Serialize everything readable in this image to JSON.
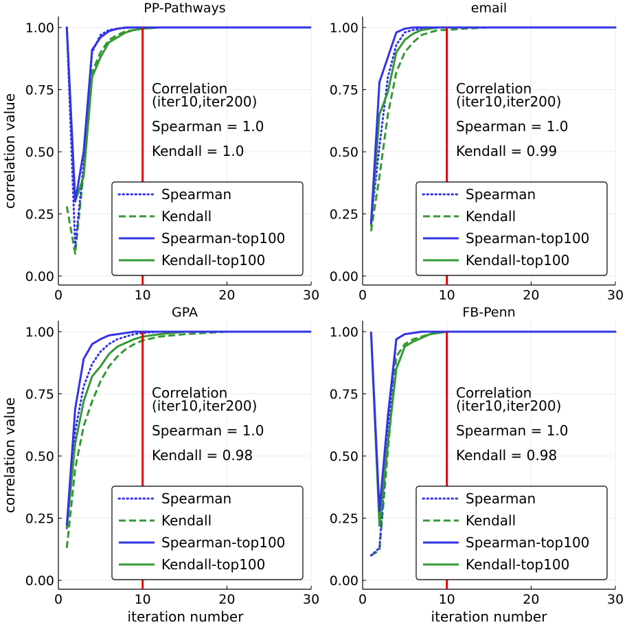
{
  "figure": {
    "ylabel": "correlation value",
    "xlabel": "iteration number"
  },
  "colors": {
    "spearman": "#3333e6",
    "kendall": "#339933",
    "vline": "#e60000",
    "grid": "#ebebeb"
  },
  "chart_data": [
    {
      "type": "line",
      "title": "PP-Pathways",
      "xlim": [
        0,
        30
      ],
      "ylim": [
        0,
        1
      ],
      "xticks": [
        "0",
        "10",
        "20",
        "30"
      ],
      "yticks": [
        "0.00",
        "0.25",
        "0.50",
        "0.75",
        "1.00"
      ],
      "vline": 10,
      "annotation": {
        "line1": "Correlation",
        "line2": "(iter10,iter200)",
        "spearman": "Spearman = 1.0",
        "kendall": "Kendall = 1.0"
      },
      "series": [
        {
          "name": "Spearman",
          "style": "dotted",
          "x": [
            1,
            2,
            3,
            4,
            5,
            6,
            7,
            8,
            9,
            10,
            12,
            15,
            20,
            30
          ],
          "values": [
            1.0,
            0.12,
            0.45,
            0.9,
            0.97,
            0.99,
            0.995,
            0.998,
            1.0,
            1.0,
            1.0,
            1.0,
            1.0,
            1.0
          ]
        },
        {
          "name": "Kendall",
          "style": "dashed",
          "x": [
            1,
            2,
            3,
            4,
            5,
            6,
            7,
            8,
            9,
            10,
            12,
            15,
            20,
            30
          ],
          "values": [
            0.28,
            0.09,
            0.42,
            0.82,
            0.9,
            0.95,
            0.97,
            0.985,
            0.99,
            0.995,
            1.0,
            1.0,
            1.0,
            1.0
          ]
        },
        {
          "name": "Spearman-top100",
          "style": "solid",
          "x": [
            1,
            2,
            3,
            4,
            5,
            6,
            7,
            8,
            9,
            10,
            12,
            15,
            20,
            30
          ],
          "values": [
            1.0,
            0.3,
            0.5,
            0.91,
            0.96,
            0.985,
            0.995,
            1.0,
            1.0,
            1.0,
            1.0,
            1.0,
            1.0,
            1.0
          ]
        },
        {
          "name": "Kendall-top100",
          "style": "solid",
          "x": [
            1,
            2,
            3,
            4,
            5,
            6,
            7,
            8,
            9,
            10,
            12,
            15,
            20,
            30
          ],
          "values": [
            1.0,
            0.3,
            0.4,
            0.8,
            0.88,
            0.94,
            0.96,
            0.98,
            0.99,
            0.995,
            1.0,
            1.0,
            1.0,
            1.0
          ]
        }
      ]
    },
    {
      "type": "line",
      "title": "email",
      "xlim": [
        0,
        30
      ],
      "ylim": [
        0,
        1
      ],
      "xticks": [
        "0",
        "10",
        "20",
        "30"
      ],
      "yticks": [
        "0.00",
        "0.25",
        "0.50",
        "0.75",
        "1.00"
      ],
      "vline": 10,
      "annotation": {
        "line1": "Correlation",
        "line2": "(iter10,iter200)",
        "spearman": "Spearman = 1.0",
        "kendall": "Kendall = 0.99"
      },
      "series": [
        {
          "name": "Spearman",
          "style": "dotted",
          "x": [
            1,
            2,
            3,
            4,
            5,
            6,
            7,
            8,
            9,
            10,
            12,
            15,
            20,
            30
          ],
          "values": [
            0.22,
            0.52,
            0.8,
            0.93,
            0.98,
            0.99,
            0.995,
            1.0,
            1.0,
            1.0,
            1.0,
            1.0,
            1.0,
            1.0
          ]
        },
        {
          "name": "Kendall",
          "style": "dashed",
          "x": [
            1,
            2,
            3,
            4,
            5,
            6,
            7,
            8,
            9,
            10,
            12,
            15,
            20,
            30
          ],
          "values": [
            0.18,
            0.4,
            0.65,
            0.82,
            0.9,
            0.94,
            0.97,
            0.98,
            0.99,
            0.99,
            0.995,
            1.0,
            1.0,
            1.0
          ]
        },
        {
          "name": "Spearman-top100",
          "style": "solid",
          "x": [
            1,
            2,
            3,
            4,
            5,
            6,
            7,
            8,
            9,
            10,
            12,
            15,
            20,
            30
          ],
          "values": [
            0.21,
            0.78,
            0.88,
            0.98,
            0.995,
            1.0,
            1.0,
            1.0,
            1.0,
            1.0,
            1.0,
            1.0,
            1.0,
            1.0
          ]
        },
        {
          "name": "Kendall-top100",
          "style": "solid",
          "x": [
            1,
            2,
            3,
            4,
            5,
            6,
            7,
            8,
            9,
            10,
            12,
            15,
            20,
            30
          ],
          "values": [
            0.2,
            0.65,
            0.74,
            0.9,
            0.95,
            0.975,
            0.99,
            0.995,
            1.0,
            1.0,
            1.0,
            1.0,
            1.0,
            1.0
          ]
        }
      ]
    },
    {
      "type": "line",
      "title": "GPA",
      "xlim": [
        0,
        30
      ],
      "ylim": [
        0,
        1
      ],
      "xticks": [
        "0",
        "10",
        "20",
        "30"
      ],
      "yticks": [
        "0.00",
        "0.25",
        "0.50",
        "0.75",
        "1.00"
      ],
      "vline": 10,
      "annotation": {
        "line1": "Correlation",
        "line2": "(iter10,iter200)",
        "spearman": "Spearman = 1.0",
        "kendall": "Kendall = 0.98"
      },
      "series": [
        {
          "name": "Spearman",
          "style": "dotted",
          "x": [
            1,
            2,
            3,
            4,
            5,
            6,
            7,
            8,
            9,
            10,
            12,
            15,
            20,
            30
          ],
          "values": [
            0.21,
            0.6,
            0.78,
            0.87,
            0.92,
            0.95,
            0.97,
            0.98,
            0.99,
            0.995,
            1.0,
            1.0,
            1.0,
            1.0
          ]
        },
        {
          "name": "Kendall",
          "style": "dashed",
          "x": [
            1,
            2,
            3,
            4,
            5,
            6,
            7,
            8,
            9,
            10,
            12,
            15,
            20,
            30
          ],
          "values": [
            0.13,
            0.45,
            0.62,
            0.72,
            0.8,
            0.86,
            0.9,
            0.93,
            0.95,
            0.965,
            0.98,
            0.99,
            1.0,
            1.0
          ]
        },
        {
          "name": "Spearman-top100",
          "style": "solid",
          "x": [
            1,
            2,
            3,
            4,
            5,
            6,
            7,
            8,
            9,
            10,
            12,
            15,
            20,
            30
          ],
          "values": [
            0.22,
            0.69,
            0.89,
            0.95,
            0.97,
            0.985,
            0.99,
            0.995,
            1.0,
            1.0,
            1.0,
            1.0,
            1.0,
            1.0
          ]
        },
        {
          "name": "Kendall-top100",
          "style": "solid",
          "x": [
            1,
            2,
            3,
            4,
            5,
            6,
            7,
            8,
            9,
            10,
            12,
            15,
            20,
            30
          ],
          "values": [
            0.21,
            0.55,
            0.72,
            0.82,
            0.86,
            0.91,
            0.94,
            0.955,
            0.97,
            0.98,
            0.99,
            1.0,
            1.0,
            1.0
          ]
        }
      ]
    },
    {
      "type": "line",
      "title": "FB-Penn",
      "xlim": [
        0,
        30
      ],
      "ylim": [
        0,
        1
      ],
      "xticks": [
        "0",
        "10",
        "20",
        "30"
      ],
      "yticks": [
        "0.00",
        "0.25",
        "0.50",
        "0.75",
        "1.00"
      ],
      "vline": 10,
      "annotation": {
        "line1": "Correlation",
        "line2": "(iter10,iter200)",
        "spearman": "Spearman = 1.0",
        "kendall": "Kendall = 0.98"
      },
      "series": [
        {
          "name": "Spearman",
          "style": "dotted",
          "x": [
            1,
            2,
            3,
            4,
            5,
            6,
            7,
            8,
            9,
            10,
            12,
            15,
            20,
            30
          ],
          "values": [
            0.1,
            0.13,
            0.6,
            0.97,
            0.99,
            0.995,
            1.0,
            1.0,
            1.0,
            1.0,
            1.0,
            1.0,
            1.0,
            1.0
          ]
        },
        {
          "name": "Kendall",
          "style": "dashed",
          "x": [
            1,
            2,
            3,
            4,
            5,
            6,
            7,
            8,
            9,
            10,
            12,
            15,
            20,
            30
          ],
          "values": [
            0.1,
            0.12,
            0.52,
            0.9,
            0.95,
            0.97,
            0.98,
            0.99,
            0.995,
            1.0,
            1.0,
            1.0,
            1.0,
            1.0
          ]
        },
        {
          "name": "Spearman-top100",
          "style": "solid",
          "x": [
            1,
            2,
            3,
            4,
            5,
            6,
            7,
            8,
            9,
            10,
            12,
            15,
            20,
            30
          ],
          "values": [
            1.0,
            0.28,
            0.66,
            0.97,
            0.99,
            0.995,
            1.0,
            1.0,
            1.0,
            1.0,
            1.0,
            1.0,
            1.0,
            1.0
          ]
        },
        {
          "name": "Kendall-top100",
          "style": "solid",
          "x": [
            1,
            2,
            3,
            4,
            5,
            6,
            7,
            8,
            9,
            10,
            12,
            15,
            20,
            30
          ],
          "values": [
            1.0,
            0.22,
            0.55,
            0.85,
            0.94,
            0.96,
            0.975,
            0.99,
            0.995,
            1.0,
            1.0,
            1.0,
            1.0,
            1.0
          ]
        }
      ]
    }
  ]
}
